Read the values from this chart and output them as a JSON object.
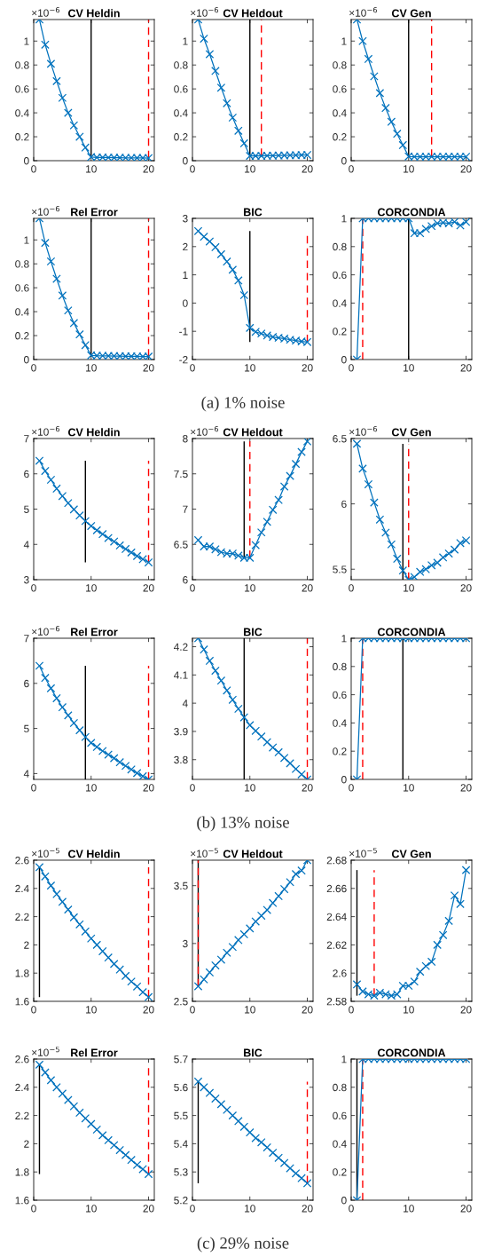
{
  "chart_data": [
    {
      "type": "line",
      "title": "CV Heldin",
      "x": [
        1,
        2,
        3,
        4,
        5,
        6,
        7,
        8,
        9,
        10,
        11,
        12,
        13,
        14,
        15,
        16,
        17,
        18,
        19,
        20
      ],
      "series": [
        {
          "color": "#0072bd",
          "values": [
            1.18,
            0.97,
            0.81,
            0.665,
            0.525,
            0.4,
            0.295,
            0.2,
            0.11,
            0.03,
            0.027,
            0.027,
            0.026,
            0.025,
            0.025,
            0.024,
            0.024,
            0.023,
            0.023,
            0.022
          ]
        }
      ],
      "xlim": [
        0,
        21
      ],
      "xticks": [
        0,
        10,
        20
      ],
      "ylim": [
        0,
        1.18
      ],
      "yticks": [
        0,
        0.2,
        0.4,
        0.6,
        0.8,
        1
      ],
      "marker": "cross",
      "line_style": "solid",
      "grid": false,
      "legend": false,
      "annotations": [
        "×10$^{−6}$"
      ],
      "ref_lines": [
        {
          "axis": "x",
          "value": 10,
          "color": "#000000",
          "line_style": "solid"
        },
        {
          "axis": "x",
          "value": 20,
          "color": "#ff0000",
          "line_style": "dashed"
        }
      ]
    },
    {
      "type": "line",
      "title": "CV Heldout",
      "x": [
        1,
        2,
        3,
        4,
        5,
        6,
        7,
        8,
        9,
        10,
        11,
        12,
        13,
        14,
        15,
        16,
        17,
        18,
        19,
        20
      ],
      "series": [
        {
          "color": "#0072bd",
          "values": [
            1.18,
            1.02,
            0.89,
            0.75,
            0.61,
            0.48,
            0.36,
            0.25,
            0.145,
            0.04,
            0.04,
            0.04,
            0.041,
            0.042,
            0.043,
            0.044,
            0.045,
            0.046,
            0.047,
            0.048
          ]
        }
      ],
      "xlim": [
        0,
        21
      ],
      "xticks": [
        0,
        10,
        20
      ],
      "ylim": [
        0,
        1.18
      ],
      "yticks": [
        0,
        0.2,
        0.4,
        0.6,
        0.8,
        1
      ],
      "marker": "cross",
      "line_style": "solid",
      "grid": false,
      "legend": false,
      "annotations": [
        "×10$^{−6}$"
      ],
      "ref_lines": [
        {
          "axis": "x",
          "value": 10,
          "color": "#000000",
          "line_style": "solid"
        },
        {
          "axis": "x",
          "value": 12,
          "color": "#ff0000",
          "line_style": "dashed"
        }
      ]
    },
    {
      "type": "line",
      "title": "CV Gen",
      "x": [
        1,
        2,
        3,
        4,
        5,
        6,
        7,
        8,
        9,
        10,
        11,
        12,
        13,
        14,
        15,
        16,
        17,
        18,
        19,
        20
      ],
      "series": [
        {
          "color": "#0072bd",
          "values": [
            1.18,
            1.0,
            0.85,
            0.705,
            0.565,
            0.44,
            0.325,
            0.225,
            0.13,
            0.035,
            0.033,
            0.033,
            0.033,
            0.033,
            0.033,
            0.033,
            0.033,
            0.033,
            0.033,
            0.033
          ]
        }
      ],
      "xlim": [
        0,
        21
      ],
      "xticks": [
        0,
        10,
        20
      ],
      "ylim": [
        0,
        1.18
      ],
      "yticks": [
        0,
        0.2,
        0.4,
        0.6,
        0.8,
        1
      ],
      "marker": "cross",
      "line_style": "solid",
      "grid": false,
      "legend": false,
      "annotations": [
        "×10$^{−6}$"
      ],
      "ref_lines": [
        {
          "axis": "x",
          "value": 10,
          "color": "#000000",
          "line_style": "solid"
        },
        {
          "axis": "x",
          "value": 14,
          "color": "#ff0000",
          "line_style": "dashed"
        }
      ]
    },
    {
      "type": "line",
      "title": "Rel Error",
      "x": [
        1,
        2,
        3,
        4,
        5,
        6,
        7,
        8,
        9,
        10,
        11,
        12,
        13,
        14,
        15,
        16,
        17,
        18,
        19,
        20
      ],
      "series": [
        {
          "color": "#0072bd",
          "values": [
            1.18,
            0.975,
            0.82,
            0.675,
            0.535,
            0.41,
            0.305,
            0.21,
            0.12,
            0.035,
            0.032,
            0.031,
            0.03,
            0.029,
            0.028,
            0.027,
            0.027,
            0.026,
            0.025,
            0.025
          ]
        }
      ],
      "xlim": [
        0,
        21
      ],
      "xticks": [
        0,
        10,
        20
      ],
      "ylim": [
        0,
        1.18
      ],
      "yticks": [
        0,
        0.2,
        0.4,
        0.6,
        0.8,
        1
      ],
      "marker": "cross",
      "line_style": "solid",
      "grid": false,
      "legend": false,
      "annotations": [
        "×10$^{−6}$"
      ],
      "ref_lines": [
        {
          "axis": "x",
          "value": 10,
          "color": "#000000",
          "line_style": "solid"
        },
        {
          "axis": "x",
          "value": 20,
          "color": "#ff0000",
          "line_style": "dashed"
        }
      ]
    },
    {
      "type": "line",
      "title": "BIC",
      "x": [
        1,
        2,
        3,
        4,
        5,
        6,
        7,
        8,
        9,
        10,
        11,
        12,
        13,
        14,
        15,
        16,
        17,
        18,
        19,
        20
      ],
      "series": [
        {
          "color": "#0072bd",
          "values": [
            2.55,
            2.35,
            2.18,
            1.98,
            1.73,
            1.47,
            1.18,
            0.8,
            0.28,
            -0.88,
            -1.02,
            -1.08,
            -1.15,
            -1.2,
            -1.23,
            -1.26,
            -1.3,
            -1.33,
            -1.36,
            -1.38
          ]
        }
      ],
      "xlim": [
        0,
        21
      ],
      "xticks": [
        0,
        10,
        20
      ],
      "ylim": [
        -2,
        3
      ],
      "yticks": [
        -2,
        -1,
        0,
        1,
        2,
        3
      ],
      "marker": "cross",
      "line_style": "solid",
      "grid": false,
      "legend": false,
      "annotations": [
        "(a) 1% noise"
      ],
      "ref_lines": [
        {
          "axis": "x",
          "value": 10,
          "color": "#000000",
          "line_style": "solid"
        },
        {
          "axis": "x",
          "value": 20,
          "color": "#ff0000",
          "line_style": "dashed"
        }
      ]
    },
    {
      "type": "line",
      "title": "CORCONDIA",
      "x": [
        1,
        2,
        3,
        4,
        5,
        6,
        7,
        8,
        9,
        10,
        11,
        12,
        13,
        14,
        15,
        16,
        17,
        18,
        19,
        20
      ],
      "series": [
        {
          "color": "#0072bd",
          "values": [
            0,
            1,
            1,
            1,
            1,
            1,
            1,
            1,
            1,
            1,
            0.895,
            0.895,
            0.925,
            0.945,
            0.965,
            0.97,
            0.965,
            0.975,
            0.95,
            0.975
          ]
        }
      ],
      "xlim": [
        0,
        21
      ],
      "xticks": [
        0,
        10,
        20
      ],
      "ylim": [
        0,
        1
      ],
      "yticks": [
        0,
        0.2,
        0.4,
        0.6,
        0.8,
        1
      ],
      "marker": "cross",
      "line_style": "solid",
      "grid": false,
      "legend": false,
      "ref_lines": [
        {
          "axis": "x",
          "value": 10,
          "color": "#000000",
          "line_style": "solid"
        },
        {
          "axis": "x",
          "value": 2,
          "color": "#ff0000",
          "line_style": "dashed"
        }
      ]
    },
    {
      "type": "line",
      "title": "CV Heldin",
      "x": [
        1,
        2,
        3,
        4,
        5,
        6,
        7,
        8,
        9,
        10,
        11,
        12,
        13,
        14,
        15,
        16,
        17,
        18,
        19,
        20
      ],
      "series": [
        {
          "color": "#0072bd",
          "values": [
            6.37,
            6.08,
            5.83,
            5.58,
            5.37,
            5.17,
            4.99,
            4.82,
            4.66,
            4.52,
            4.4,
            4.29,
            4.18,
            4.08,
            3.97,
            3.87,
            3.77,
            3.67,
            3.58,
            3.49
          ]
        }
      ],
      "xlim": [
        0,
        21
      ],
      "xticks": [
        0,
        10,
        20
      ],
      "ylim": [
        3,
        7
      ],
      "yticks": [
        3,
        4,
        5,
        6,
        7
      ],
      "marker": "cross",
      "line_style": "solid",
      "grid": false,
      "legend": false,
      "annotations": [
        "×10$^{−6}$"
      ],
      "ref_lines": [
        {
          "axis": "x",
          "value": 9,
          "color": "#000000",
          "line_style": "solid"
        },
        {
          "axis": "x",
          "value": 20,
          "color": "#ff0000",
          "line_style": "dashed"
        }
      ]
    },
    {
      "type": "line",
      "title": "CV Heldout",
      "x": [
        1,
        2,
        3,
        4,
        5,
        6,
        7,
        8,
        9,
        10,
        11,
        12,
        13,
        14,
        15,
        16,
        17,
        18,
        19,
        20
      ],
      "series": [
        {
          "color": "#0072bd",
          "values": [
            6.56,
            6.47,
            6.47,
            6.43,
            6.39,
            6.37,
            6.37,
            6.34,
            6.31,
            6.31,
            6.49,
            6.67,
            6.82,
            6.99,
            7.13,
            7.32,
            7.47,
            7.64,
            7.81,
            7.96
          ]
        }
      ],
      "xlim": [
        0,
        21
      ],
      "xticks": [
        0,
        10,
        20
      ],
      "ylim": [
        6,
        8
      ],
      "yticks": [
        6,
        6.5,
        7,
        7.5,
        8
      ],
      "marker": "cross",
      "line_style": "solid",
      "grid": false,
      "legend": false,
      "annotations": [
        "×10$^{−6}$"
      ],
      "ref_lines": [
        {
          "axis": "x",
          "value": 9,
          "color": "#000000",
          "line_style": "solid"
        },
        {
          "axis": "x",
          "value": 10,
          "color": "#ff0000",
          "line_style": "dashed"
        }
      ]
    },
    {
      "type": "line",
      "title": "CV Gen",
      "x": [
        1,
        2,
        3,
        4,
        5,
        6,
        7,
        8,
        9,
        10,
        11,
        12,
        13,
        14,
        15,
        16,
        17,
        18,
        19,
        20
      ],
      "series": [
        {
          "color": "#0072bd",
          "values": [
            6.46,
            6.27,
            6.15,
            6.01,
            5.88,
            5.78,
            5.69,
            5.58,
            5.49,
            5.42,
            5.44,
            5.48,
            5.5,
            5.53,
            5.55,
            5.59,
            5.62,
            5.65,
            5.7,
            5.72
          ]
        }
      ],
      "xlim": [
        0,
        21
      ],
      "xticks": [
        0,
        10,
        20
      ],
      "ylim": [
        5.42,
        6.5
      ],
      "yticks": [
        5.5,
        6,
        6.5
      ],
      "marker": "cross",
      "line_style": "solid",
      "grid": false,
      "legend": false,
      "annotations": [
        "×10$^{−6}$"
      ],
      "ref_lines": [
        {
          "axis": "x",
          "value": 9,
          "color": "#000000",
          "line_style": "solid"
        },
        {
          "axis": "x",
          "value": 10,
          "color": "#ff0000",
          "line_style": "dashed"
        }
      ]
    },
    {
      "type": "line",
      "title": "Rel Error",
      "x": [
        1,
        2,
        3,
        4,
        5,
        6,
        7,
        8,
        9,
        10,
        11,
        12,
        13,
        14,
        15,
        16,
        17,
        18,
        19,
        20
      ],
      "series": [
        {
          "color": "#0072bd",
          "values": [
            6.39,
            6.12,
            5.89,
            5.67,
            5.47,
            5.29,
            5.12,
            4.96,
            4.81,
            4.68,
            4.59,
            4.5,
            4.42,
            4.34,
            4.25,
            4.17,
            4.09,
            4.01,
            3.94,
            3.87
          ]
        }
      ],
      "xlim": [
        0,
        21
      ],
      "xticks": [
        0,
        10,
        20
      ],
      "ylim": [
        3.87,
        7
      ],
      "yticks": [
        4,
        5,
        6,
        7
      ],
      "marker": "cross",
      "line_style": "solid",
      "grid": false,
      "legend": false,
      "annotations": [
        "×10$^{−6}$"
      ],
      "ref_lines": [
        {
          "axis": "x",
          "value": 9,
          "color": "#000000",
          "line_style": "solid"
        },
        {
          "axis": "x",
          "value": 20,
          "color": "#ff0000",
          "line_style": "dashed"
        }
      ]
    },
    {
      "type": "line",
      "title": "BIC",
      "x": [
        1,
        2,
        3,
        4,
        5,
        6,
        7,
        8,
        9,
        10,
        11,
        12,
        13,
        14,
        15,
        16,
        17,
        18,
        19,
        20
      ],
      "series": [
        {
          "color": "#0072bd",
          "values": [
            4.23,
            4.19,
            4.15,
            4.115,
            4.08,
            4.045,
            4.012,
            3.98,
            3.95,
            3.922,
            3.902,
            3.882,
            3.862,
            3.843,
            3.826,
            3.806,
            3.787,
            3.767,
            3.748,
            3.73
          ]
        }
      ],
      "xlim": [
        0,
        21
      ],
      "xticks": [
        0,
        10,
        20
      ],
      "ylim": [
        3.73,
        4.23
      ],
      "yticks": [
        3.8,
        3.9,
        4,
        4.1,
        4.2
      ],
      "marker": "cross",
      "line_style": "solid",
      "grid": false,
      "legend": false,
      "annotations": [
        "(b) 13% noise"
      ],
      "ref_lines": [
        {
          "axis": "x",
          "value": 9,
          "color": "#000000",
          "line_style": "solid"
        },
        {
          "axis": "x",
          "value": 20,
          "color": "#ff0000",
          "line_style": "dashed"
        }
      ]
    },
    {
      "type": "line",
      "title": "CORCONDIA",
      "x": [
        1,
        2,
        3,
        4,
        5,
        6,
        7,
        8,
        9,
        10,
        11,
        12,
        13,
        14,
        15,
        16,
        17,
        18,
        19,
        20
      ],
      "series": [
        {
          "color": "#0072bd",
          "values": [
            0,
            1,
            1,
            1,
            1,
            1,
            1,
            1,
            1,
            1,
            1,
            1,
            1,
            1,
            1,
            1,
            1,
            1,
            1,
            1
          ]
        }
      ],
      "xlim": [
        0,
        21
      ],
      "xticks": [
        0,
        10,
        20
      ],
      "ylim": [
        0,
        1
      ],
      "yticks": [
        0,
        0.2,
        0.4,
        0.6,
        0.8,
        1
      ],
      "marker": "cross",
      "line_style": "solid",
      "grid": false,
      "legend": false,
      "ref_lines": [
        {
          "axis": "x",
          "value": 9,
          "color": "#000000",
          "line_style": "solid"
        },
        {
          "axis": "x",
          "value": 2,
          "color": "#ff0000",
          "line_style": "dashed"
        }
      ]
    },
    {
      "type": "line",
      "title": "CV Heldin",
      "x": [
        1,
        2,
        3,
        4,
        5,
        6,
        7,
        8,
        9,
        10,
        11,
        12,
        13,
        14,
        15,
        16,
        17,
        18,
        19,
        20
      ],
      "series": [
        {
          "color": "#0072bd",
          "values": [
            2.55,
            2.485,
            2.42,
            2.36,
            2.305,
            2.25,
            2.195,
            2.145,
            2.095,
            2.045,
            2.0,
            1.955,
            1.91,
            1.865,
            1.825,
            1.78,
            1.74,
            1.705,
            1.665,
            1.63
          ]
        }
      ],
      "xlim": [
        0,
        21
      ],
      "xticks": [
        0,
        10,
        20
      ],
      "ylim": [
        1.6,
        2.6
      ],
      "yticks": [
        1.6,
        1.8,
        2,
        2.2,
        2.4,
        2.6
      ],
      "marker": "cross",
      "line_style": "solid",
      "grid": false,
      "legend": false,
      "annotations": [
        "×10$^{−5}$"
      ],
      "ref_lines": [
        {
          "axis": "x",
          "value": 1,
          "color": "#000000",
          "line_style": "solid"
        },
        {
          "axis": "x",
          "value": 20,
          "color": "#ff0000",
          "line_style": "dashed"
        }
      ]
    },
    {
      "type": "line",
      "title": "CV Heldout",
      "x": [
        1,
        2,
        3,
        4,
        5,
        6,
        7,
        8,
        9,
        10,
        11,
        12,
        13,
        14,
        15,
        16,
        17,
        18,
        19,
        20
      ],
      "series": [
        {
          "color": "#0072bd",
          "values": [
            2.63,
            2.69,
            2.75,
            2.81,
            2.86,
            2.92,
            2.97,
            3.03,
            3.08,
            3.13,
            3.19,
            3.24,
            3.29,
            3.35,
            3.41,
            3.47,
            3.53,
            3.6,
            3.63,
            3.72
          ]
        }
      ],
      "xlim": [
        0,
        21
      ],
      "xticks": [
        0,
        10,
        20
      ],
      "ylim": [
        2.5,
        3.72
      ],
      "yticks": [
        2.5,
        3,
        3.5
      ],
      "marker": "cross",
      "line_style": "solid",
      "grid": false,
      "legend": false,
      "annotations": [
        "×10$^{−5}$"
      ],
      "ref_lines": [
        {
          "axis": "x",
          "value": 1,
          "color": "#000000",
          "line_style": "solid"
        },
        {
          "axis": "x",
          "value": 1,
          "color": "#ff0000",
          "line_style": "dashed"
        }
      ]
    },
    {
      "type": "line",
      "title": "CV Gen",
      "x": [
        1,
        2,
        3,
        4,
        5,
        6,
        7,
        8,
        9,
        10,
        11,
        12,
        13,
        14,
        15,
        16,
        17,
        18,
        19,
        20
      ],
      "series": [
        {
          "color": "#0072bd",
          "values": [
            2.592,
            2.587,
            2.585,
            2.584,
            2.586,
            2.585,
            2.584,
            2.585,
            2.591,
            2.591,
            2.594,
            2.601,
            2.605,
            2.608,
            2.62,
            2.627,
            2.637,
            2.655,
            2.649,
            2.673
          ]
        }
      ],
      "xlim": [
        0,
        21
      ],
      "xticks": [
        0,
        10,
        20
      ],
      "ylim": [
        2.58,
        2.68
      ],
      "yticks": [
        2.58,
        2.6,
        2.62,
        2.64,
        2.66,
        2.68
      ],
      "marker": "cross",
      "line_style": "solid",
      "grid": false,
      "legend": false,
      "annotations": [
        "×10$^{−5}$"
      ],
      "ref_lines": [
        {
          "axis": "x",
          "value": 1,
          "color": "#000000",
          "line_style": "solid"
        },
        {
          "axis": "x",
          "value": 4,
          "color": "#ff0000",
          "line_style": "dashed"
        }
      ]
    },
    {
      "type": "line",
      "title": "Rel Error",
      "x": [
        1,
        2,
        3,
        4,
        5,
        6,
        7,
        8,
        9,
        10,
        11,
        12,
        13,
        14,
        15,
        16,
        17,
        18,
        19,
        20
      ],
      "series": [
        {
          "color": "#0072bd",
          "values": [
            2.56,
            2.505,
            2.45,
            2.4,
            2.355,
            2.31,
            2.265,
            2.22,
            2.18,
            2.14,
            2.1,
            2.06,
            2.025,
            1.99,
            1.955,
            1.92,
            1.885,
            1.85,
            1.82,
            1.785
          ]
        }
      ],
      "xlim": [
        0,
        21
      ],
      "xticks": [
        0,
        10,
        20
      ],
      "ylim": [
        1.6,
        2.6
      ],
      "yticks": [
        1.6,
        1.8,
        2,
        2.2,
        2.4,
        2.6
      ],
      "marker": "cross",
      "line_style": "solid",
      "grid": false,
      "legend": false,
      "annotations": [
        "×10$^{−5}$"
      ],
      "ref_lines": [
        {
          "axis": "x",
          "value": 1,
          "color": "#000000",
          "line_style": "solid"
        },
        {
          "axis": "x",
          "value": 20,
          "color": "#ff0000",
          "line_style": "dashed"
        }
      ]
    },
    {
      "type": "line",
      "title": "BIC",
      "x": [
        1,
        2,
        3,
        4,
        5,
        6,
        7,
        8,
        9,
        10,
        11,
        12,
        13,
        14,
        15,
        16,
        17,
        18,
        19,
        20
      ],
      "series": [
        {
          "color": "#0072bd",
          "values": [
            5.62,
            5.6,
            5.58,
            5.56,
            5.54,
            5.52,
            5.5,
            5.48,
            5.46,
            5.44,
            5.42,
            5.405,
            5.387,
            5.368,
            5.35,
            5.332,
            5.313,
            5.295,
            5.278,
            5.26
          ]
        }
      ],
      "xlim": [
        0,
        21
      ],
      "xticks": [
        0,
        10,
        20
      ],
      "ylim": [
        5.2,
        5.7
      ],
      "yticks": [
        5.2,
        5.3,
        5.4,
        5.5,
        5.6,
        5.7
      ],
      "marker": "cross",
      "line_style": "solid",
      "grid": false,
      "legend": false,
      "annotations": [
        "(c) 29% noise"
      ],
      "ref_lines": [
        {
          "axis": "x",
          "value": 1,
          "color": "#000000",
          "line_style": "solid"
        },
        {
          "axis": "x",
          "value": 20,
          "color": "#ff0000",
          "line_style": "dashed"
        }
      ]
    },
    {
      "type": "line",
      "title": "CORCONDIA",
      "x": [
        1,
        2,
        3,
        4,
        5,
        6,
        7,
        8,
        9,
        10,
        11,
        12,
        13,
        14,
        15,
        16,
        17,
        18,
        19,
        20
      ],
      "series": [
        {
          "color": "#0072bd",
          "values": [
            0,
            1,
            1,
            1,
            1,
            1,
            1,
            1,
            1,
            1,
            1,
            1,
            1,
            1,
            1,
            1,
            1,
            1,
            1,
            1
          ]
        }
      ],
      "xlim": [
        0,
        21
      ],
      "xticks": [
        0,
        10,
        20
      ],
      "ylim": [
        0,
        1
      ],
      "yticks": [
        0,
        0.2,
        0.4,
        0.6,
        0.8,
        1
      ],
      "marker": "cross",
      "line_style": "solid",
      "grid": false,
      "legend": false,
      "ref_lines": [
        {
          "axis": "x",
          "value": 1,
          "color": "#000000",
          "line_style": "solid"
        },
        {
          "axis": "x",
          "value": 2,
          "color": "#ff0000",
          "line_style": "dashed"
        }
      ]
    }
  ]
}
